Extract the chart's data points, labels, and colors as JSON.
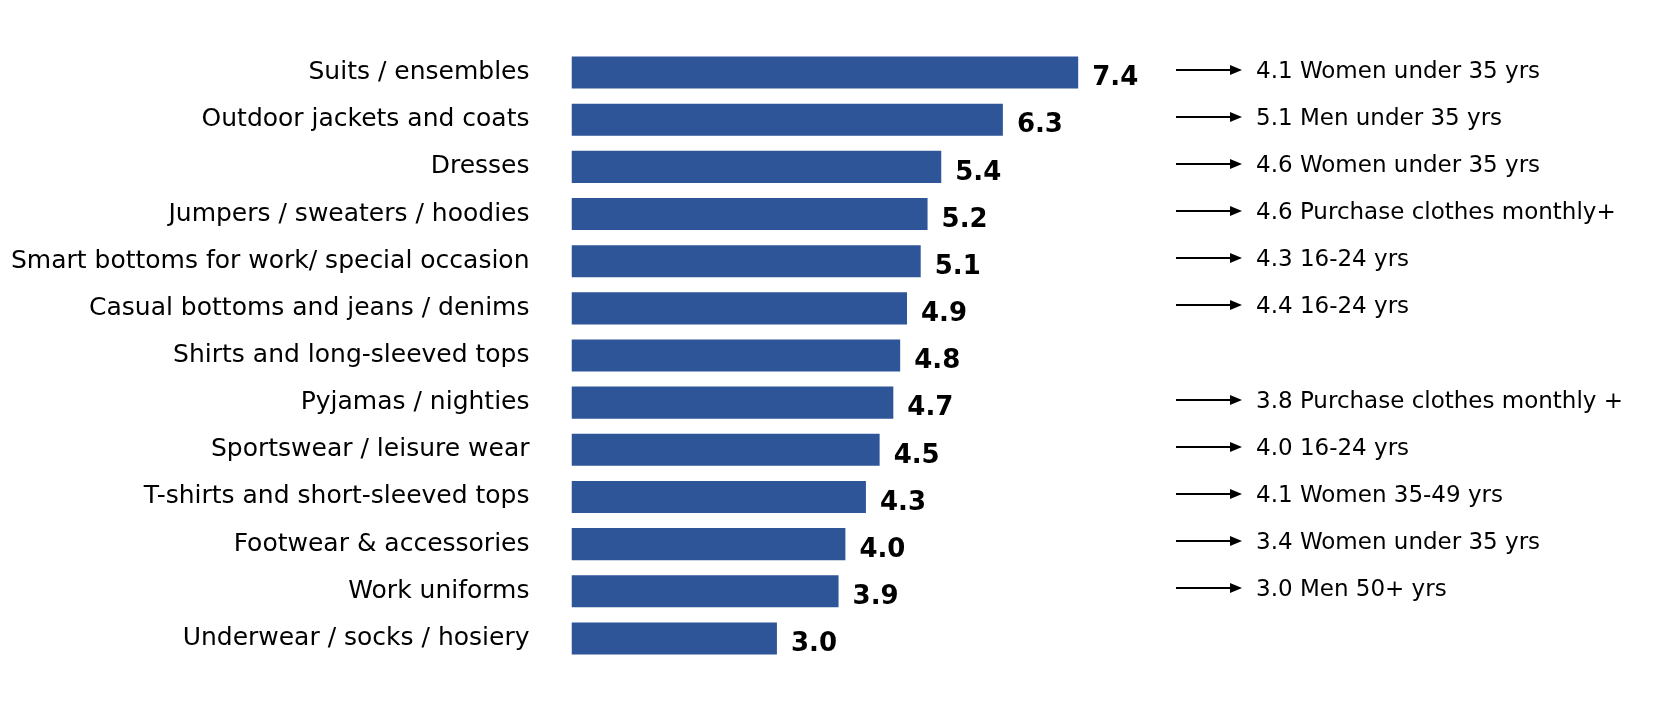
{
  "chart_data": {
    "type": "bar",
    "orientation": "horizontal",
    "tick_labels": "y",
    "color": "#2e5597",
    "categories": [
      "Suits / ensembles",
      "Outdoor jackets and coats",
      "Dresses",
      "Jumpers / sweaters / hoodies",
      "Smart bottoms for work/ special occasion",
      "Casual bottoms and jeans / denims",
      "Shirts and long-sleeved tops",
      "Pyjamas / nighties",
      "Sportswear / leisure wear",
      "T-shirts and short-sleeved tops",
      "Footwear & accessories",
      "Work uniforms",
      "Underwear / socks / hosiery"
    ],
    "values": [
      7.4,
      6.3,
      5.4,
      5.2,
      5.1,
      4.9,
      4.8,
      4.7,
      4.5,
      4.3,
      4.0,
      3.9,
      3.0
    ],
    "value_labels": [
      "7.4",
      "6.3",
      "5.4",
      "5.2",
      "5.1",
      "4.9",
      "4.8",
      "4.7",
      "4.5",
      "4.3",
      "4.0",
      "3.9",
      "3.0"
    ],
    "annotations": [
      "4.1 Women under 35 yrs",
      "5.1 Men under 35 yrs",
      "4.6 Women under 35 yrs",
      "4.6 Purchase clothes monthly+",
      "4.3 16-24 yrs",
      "4.4 16-24 yrs",
      null,
      "3.8 Purchase clothes monthly +",
      "4.0 16-24 yrs",
      "4.1 Women 35-49 yrs",
      "3.4 Women under 35 yrs",
      "3.0 Men 50+ yrs"
    ]
  }
}
